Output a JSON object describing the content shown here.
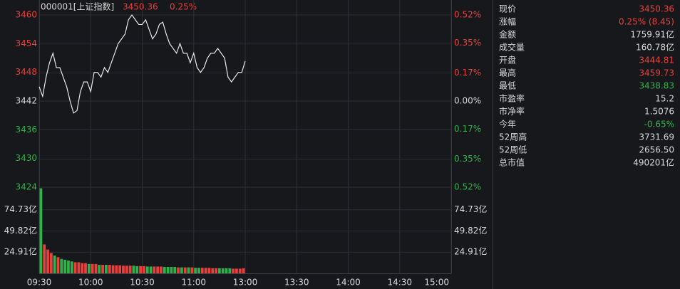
{
  "header": {
    "code": "000001[上证指数]",
    "price": "3450.36",
    "change": "0.25%"
  },
  "chart_data": [
    {
      "type": "line",
      "color": "#e8e8e8",
      "up_color": "#e8403c",
      "down_color": "#2fb24a",
      "flat_color": "#d8d8d8",
      "xlim": [
        0,
        240
      ],
      "x": [
        0,
        2,
        4,
        6,
        8,
        10,
        12,
        14,
        16,
        18,
        20,
        22,
        24,
        26,
        28,
        30,
        32,
        34,
        36,
        38,
        40,
        42,
        44,
        46,
        48,
        50,
        52,
        54,
        56,
        58,
        60,
        62,
        64,
        66,
        68,
        70,
        72,
        74,
        76,
        78,
        80,
        82,
        84,
        86,
        88,
        90,
        92,
        94,
        96,
        98,
        100,
        102,
        104,
        106,
        108,
        110,
        112,
        114,
        116,
        118,
        120
      ],
      "values": [
        3445,
        3443,
        3447,
        3450,
        3452,
        3449,
        3449,
        3447,
        3445,
        3442,
        3439.5,
        3440,
        3444,
        3446,
        3446,
        3444,
        3448,
        3448,
        3447,
        3449,
        3448,
        3450,
        3452,
        3454,
        3455,
        3456,
        3459,
        3460,
        3459,
        3458,
        3458,
        3459,
        3457,
        3455,
        3456,
        3458,
        3458.5,
        3456,
        3454,
        3453,
        3452,
        3454,
        3452,
        3452,
        3450,
        3452,
        3449,
        3448,
        3449,
        3451,
        3452,
        3452,
        3453,
        3452,
        3451,
        3447,
        3446,
        3447,
        3448,
        3448,
        3450.36
      ],
      "ylim": [
        3424,
        3460
      ],
      "yticks": [
        3460,
        3454,
        3448,
        3442,
        3436,
        3430,
        3424
      ],
      "y2lim": [
        -0.52,
        0.52
      ],
      "y2ticks": [
        {
          "value": 0.52,
          "label": "0.52%"
        },
        {
          "value": 0.35,
          "label": "0.35%"
        },
        {
          "value": 0.17,
          "label": "0.17%"
        },
        {
          "value": 0,
          "label": "0.00%"
        },
        {
          "value": -0.17,
          "label": "0.17%"
        },
        {
          "value": -0.35,
          "label": "0.35%"
        },
        {
          "value": -0.52,
          "label": "0.52%"
        }
      ],
      "grid": true
    },
    {
      "type": "bar",
      "up_color": "#e8403c",
      "down_color": "#2fb24a",
      "xlim": [
        0,
        240
      ],
      "xticks": [
        {
          "value": 0,
          "label": "09:30"
        },
        {
          "value": 30,
          "label": "10:00"
        },
        {
          "value": 60,
          "label": "10:30"
        },
        {
          "value": 90,
          "label": "11:00"
        },
        {
          "value": 120,
          "label": "13:00"
        },
        {
          "value": 150,
          "label": "13:30"
        },
        {
          "value": 180,
          "label": "14:00"
        },
        {
          "value": 210,
          "label": "14:30"
        },
        {
          "value": 240,
          "label": "15:00"
        }
      ],
      "x": [
        0,
        2,
        4,
        6,
        8,
        10,
        12,
        14,
        16,
        18,
        20,
        22,
        24,
        26,
        28,
        30,
        32,
        34,
        36,
        38,
        40,
        42,
        44,
        46,
        48,
        50,
        52,
        54,
        56,
        58,
        60,
        62,
        64,
        66,
        68,
        70,
        72,
        74,
        76,
        78,
        80,
        82,
        84,
        86,
        88,
        90,
        92,
        94,
        96,
        98,
        100,
        102,
        104,
        106,
        108,
        110,
        112,
        114,
        116,
        118
      ],
      "values": [
        100,
        34,
        28,
        24,
        21,
        19,
        17,
        16,
        15,
        14,
        13,
        13,
        12,
        12,
        11,
        11,
        11,
        10,
        10,
        10,
        10,
        9.5,
        9.5,
        9.5,
        9,
        9,
        9,
        9,
        8.5,
        8.5,
        8.5,
        8,
        8,
        8,
        8,
        8,
        7.5,
        7.5,
        7.5,
        7.5,
        7,
        7,
        7,
        7,
        7,
        6.5,
        6.5,
        6.5,
        6.5,
        6.5,
        6,
        6,
        6,
        6,
        6,
        6,
        5.5,
        5.5,
        5.5,
        6
      ],
      "ylim": [
        0,
        101.3
      ],
      "yticks": [
        {
          "value": 74.73,
          "label": "74.73亿"
        },
        {
          "value": 49.82,
          "label": "49.82亿"
        },
        {
          "value": 24.91,
          "label": "24.91亿"
        }
      ],
      "grid": true
    }
  ],
  "stats": [
    {
      "label": "现价",
      "value": "3450.36",
      "color": "#e8403c"
    },
    {
      "label": "涨幅",
      "value": "0.25% (8.45)",
      "color": "#e8403c"
    },
    {
      "label": "金额",
      "value": "1759.91亿",
      "color": "#d8d8d8"
    },
    {
      "label": "成交量",
      "value": "160.78亿",
      "color": "#d8d8d8"
    },
    {
      "label": "开盘",
      "value": "3444.81",
      "color": "#e8403c"
    },
    {
      "label": "最高",
      "value": "3459.73",
      "color": "#e8403c"
    },
    {
      "label": "最低",
      "value": "3438.83",
      "color": "#2fb24a"
    },
    {
      "label": "市盈率",
      "value": "15.2",
      "color": "#d8d8d8"
    },
    {
      "label": "市净率",
      "value": "1.5076",
      "color": "#d8d8d8"
    },
    {
      "label": "今年",
      "value": "-0.65%",
      "color": "#2fb24a"
    },
    {
      "label": "52周高",
      "value": "3731.69",
      "color": "#d8d8d8"
    },
    {
      "label": "52周低",
      "value": "2656.50",
      "color": "#d8d8d8"
    },
    {
      "label": "总市值",
      "value": "490201亿",
      "color": "#d8d8d8"
    }
  ]
}
